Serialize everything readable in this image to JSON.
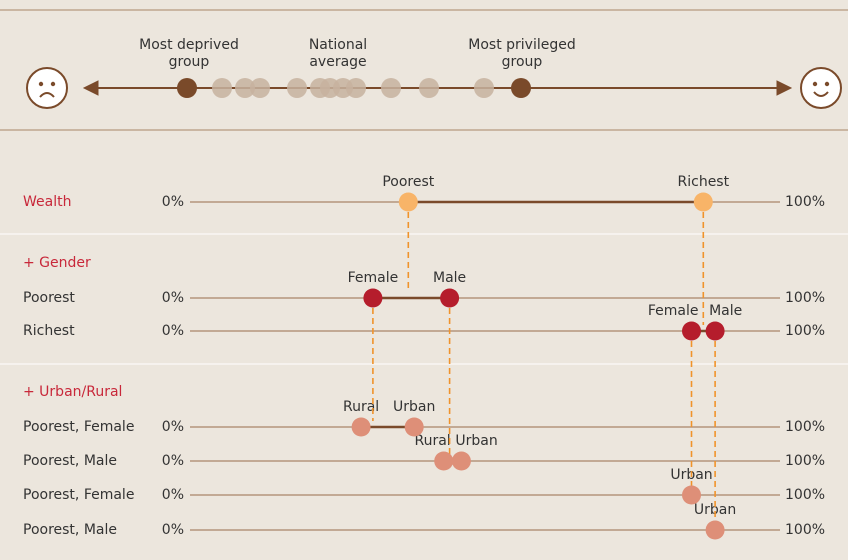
{
  "header": {
    "labels": [
      {
        "lines": [
          "Most deprived",
          "group"
        ]
      },
      {
        "lines": [
          "National",
          "average"
        ]
      },
      {
        "lines": [
          "Most privileged",
          "group"
        ]
      }
    ]
  },
  "groups": [
    {
      "rows": [
        {
          "label": "Wealth",
          "min": "0%",
          "max": "100%",
          "points": [
            {
              "label": "Poorest",
              "value": 37
            },
            {
              "label": "Richest",
              "value": 87
            }
          ]
        }
      ]
    },
    {
      "title": "+ Gender",
      "rows": [
        {
          "label": "Poorest",
          "min": "0%",
          "max": "100%",
          "points": [
            {
              "label": "Female",
              "value": 31
            },
            {
              "label": "Male",
              "value": 44
            }
          ]
        },
        {
          "label": "Richest",
          "min": "0%",
          "max": "100%",
          "points": [
            {
              "label": "Female",
              "value": 85
            },
            {
              "label": "Male",
              "value": 89
            }
          ]
        }
      ]
    },
    {
      "title": "+ Urban/Rural",
      "rows": [
        {
          "label": "Poorest, Female",
          "min": "0%",
          "max": "100%",
          "points": [
            {
              "label": "Rural",
              "value": 29
            },
            {
              "label": "Urban",
              "value": 38
            }
          ]
        },
        {
          "label": "Poorest, Male",
          "min": "0%",
          "max": "100%",
          "points": [
            {
              "label": "Rural",
              "value": 43
            },
            {
              "label": "Urban",
              "value": 46
            }
          ]
        },
        {
          "label": "Poorest, Female",
          "min": "0%",
          "max": "100%",
          "points": [
            {
              "label": "Urban",
              "value": 85
            }
          ]
        },
        {
          "label": "Poorest, Male",
          "min": "0%",
          "max": "100%",
          "points": [
            {
              "label": "Urban",
              "value": 89
            }
          ]
        }
      ]
    }
  ]
}
